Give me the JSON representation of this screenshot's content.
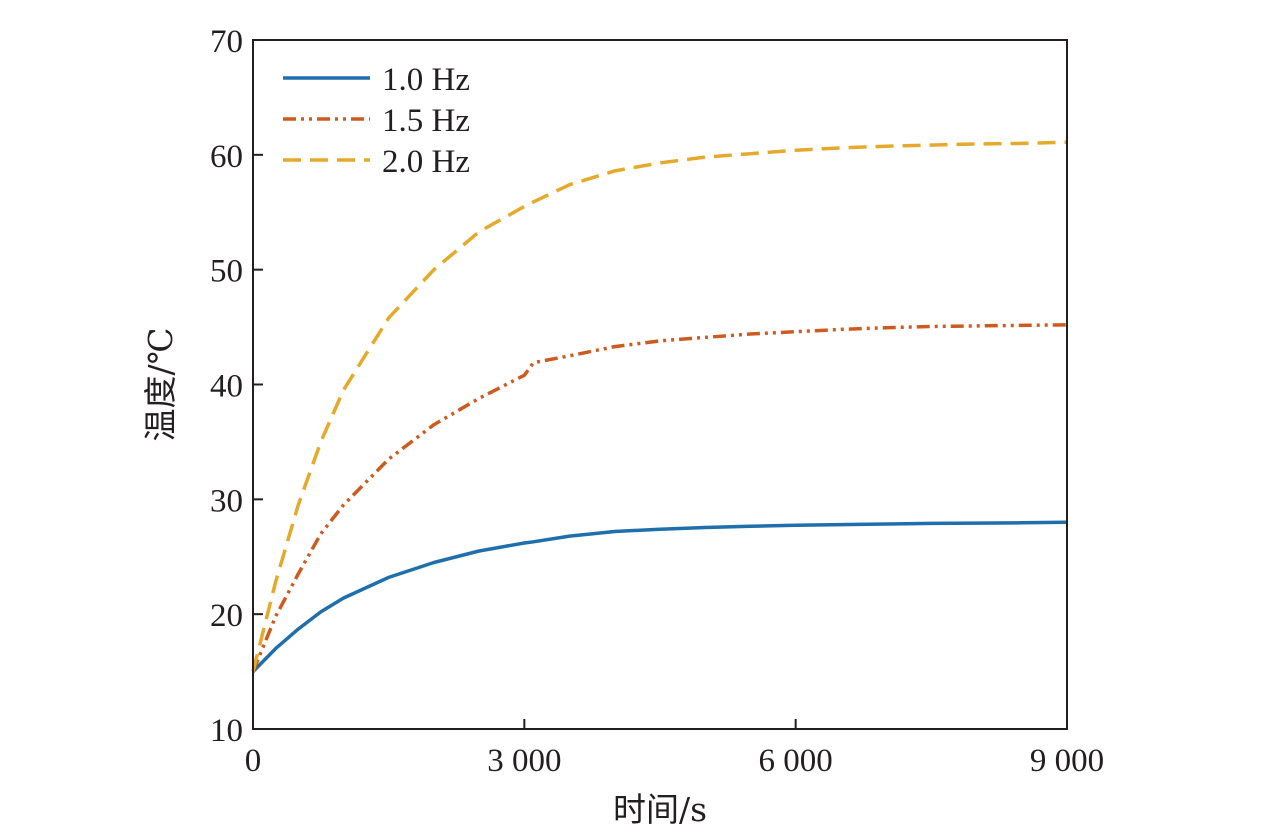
{
  "chart_data": {
    "type": "line",
    "title": "",
    "xlabel": "时间/s",
    "ylabel": "温度/℃",
    "xlim": [
      0,
      9000
    ],
    "ylim": [
      10,
      70
    ],
    "xticks": [
      0,
      3000,
      6000,
      9000
    ],
    "xtick_labels": [
      "0",
      "3 000",
      "6 000",
      "9 000"
    ],
    "yticks": [
      10,
      20,
      30,
      40,
      50,
      60,
      70
    ],
    "ytick_labels": [
      "10",
      "20",
      "30",
      "40",
      "50",
      "60",
      "70"
    ],
    "grid": false,
    "legend_position": "top-left",
    "x": [
      0,
      250,
      500,
      750,
      1000,
      1500,
      2000,
      2500,
      3000,
      3100,
      3500,
      4000,
      4500,
      5000,
      5500,
      6000,
      6500,
      7000,
      7500,
      8000,
      8500,
      9000
    ],
    "series": [
      {
        "name": "1.0 Hz",
        "color": "#1f6fad",
        "dash": "solid",
        "values": [
          15.0,
          17.0,
          18.7,
          20.2,
          21.4,
          23.2,
          24.5,
          25.5,
          26.2,
          26.3,
          26.8,
          27.2,
          27.4,
          27.55,
          27.65,
          27.75,
          27.8,
          27.85,
          27.9,
          27.93,
          27.96,
          28.0
        ]
      },
      {
        "name": "1.5 Hz",
        "color": "#cf5a20",
        "dash": "dash-dot-dot",
        "values": [
          15.0,
          19.8,
          23.5,
          27.0,
          29.5,
          33.5,
          36.5,
          38.8,
          40.8,
          41.9,
          42.5,
          43.3,
          43.8,
          44.1,
          44.4,
          44.6,
          44.8,
          44.95,
          45.05,
          45.1,
          45.15,
          45.2
        ]
      },
      {
        "name": "2.0 Hz",
        "color": "#e5a92b",
        "dash": "dashed",
        "values": [
          15.0,
          22.8,
          29.5,
          35.0,
          39.5,
          45.8,
          50.0,
          53.3,
          55.5,
          55.9,
          57.4,
          58.6,
          59.3,
          59.8,
          60.1,
          60.4,
          60.6,
          60.75,
          60.85,
          60.95,
          61.0,
          61.1
        ]
      }
    ]
  }
}
